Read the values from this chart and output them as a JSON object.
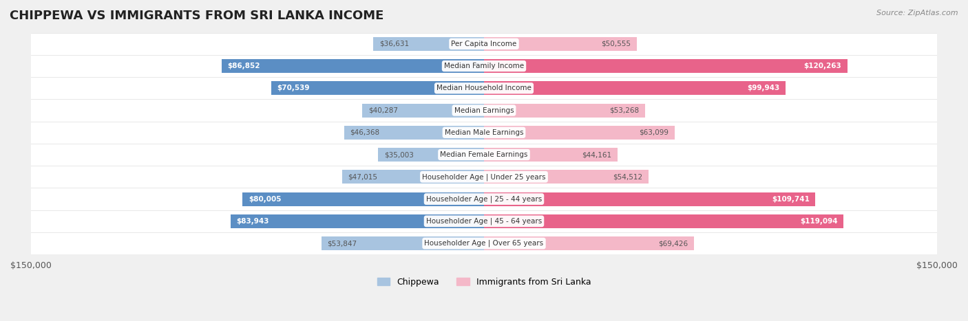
{
  "title": "CHIPPEWA VS IMMIGRANTS FROM SRI LANKA INCOME",
  "source": "Source: ZipAtlas.com",
  "categories": [
    "Per Capita Income",
    "Median Family Income",
    "Median Household Income",
    "Median Earnings",
    "Median Male Earnings",
    "Median Female Earnings",
    "Householder Age | Under 25 years",
    "Householder Age | 25 - 44 years",
    "Householder Age | 45 - 64 years",
    "Householder Age | Over 65 years"
  ],
  "chippewa_values": [
    36631,
    86852,
    70539,
    40287,
    46368,
    35003,
    47015,
    80005,
    83943,
    53847
  ],
  "srilanka_values": [
    50555,
    120263,
    99943,
    53268,
    63099,
    44161,
    54512,
    109741,
    119094,
    69426
  ],
  "chippewa_labels": [
    "$36,631",
    "$86,852",
    "$70,539",
    "$40,287",
    "$46,368",
    "$35,003",
    "$47,015",
    "$80,005",
    "$83,943",
    "$53,847"
  ],
  "srilanka_labels": [
    "$50,555",
    "$120,263",
    "$99,943",
    "$53,268",
    "$63,099",
    "$44,161",
    "$54,512",
    "$109,741",
    "$119,094",
    "$69,426"
  ],
  "chippewa_color_light": "#a8c4e0",
  "chippewa_color_dark": "#5b8ec4",
  "srilanka_color_light": "#f4b8c8",
  "srilanka_color_dark": "#e8638a",
  "max_value": 150000,
  "background_color": "#f0f0f0",
  "row_bg_color": "#f8f8f8",
  "legend_chippewa": "Chippewa",
  "legend_srilanka": "Immigrants from Sri Lanka"
}
